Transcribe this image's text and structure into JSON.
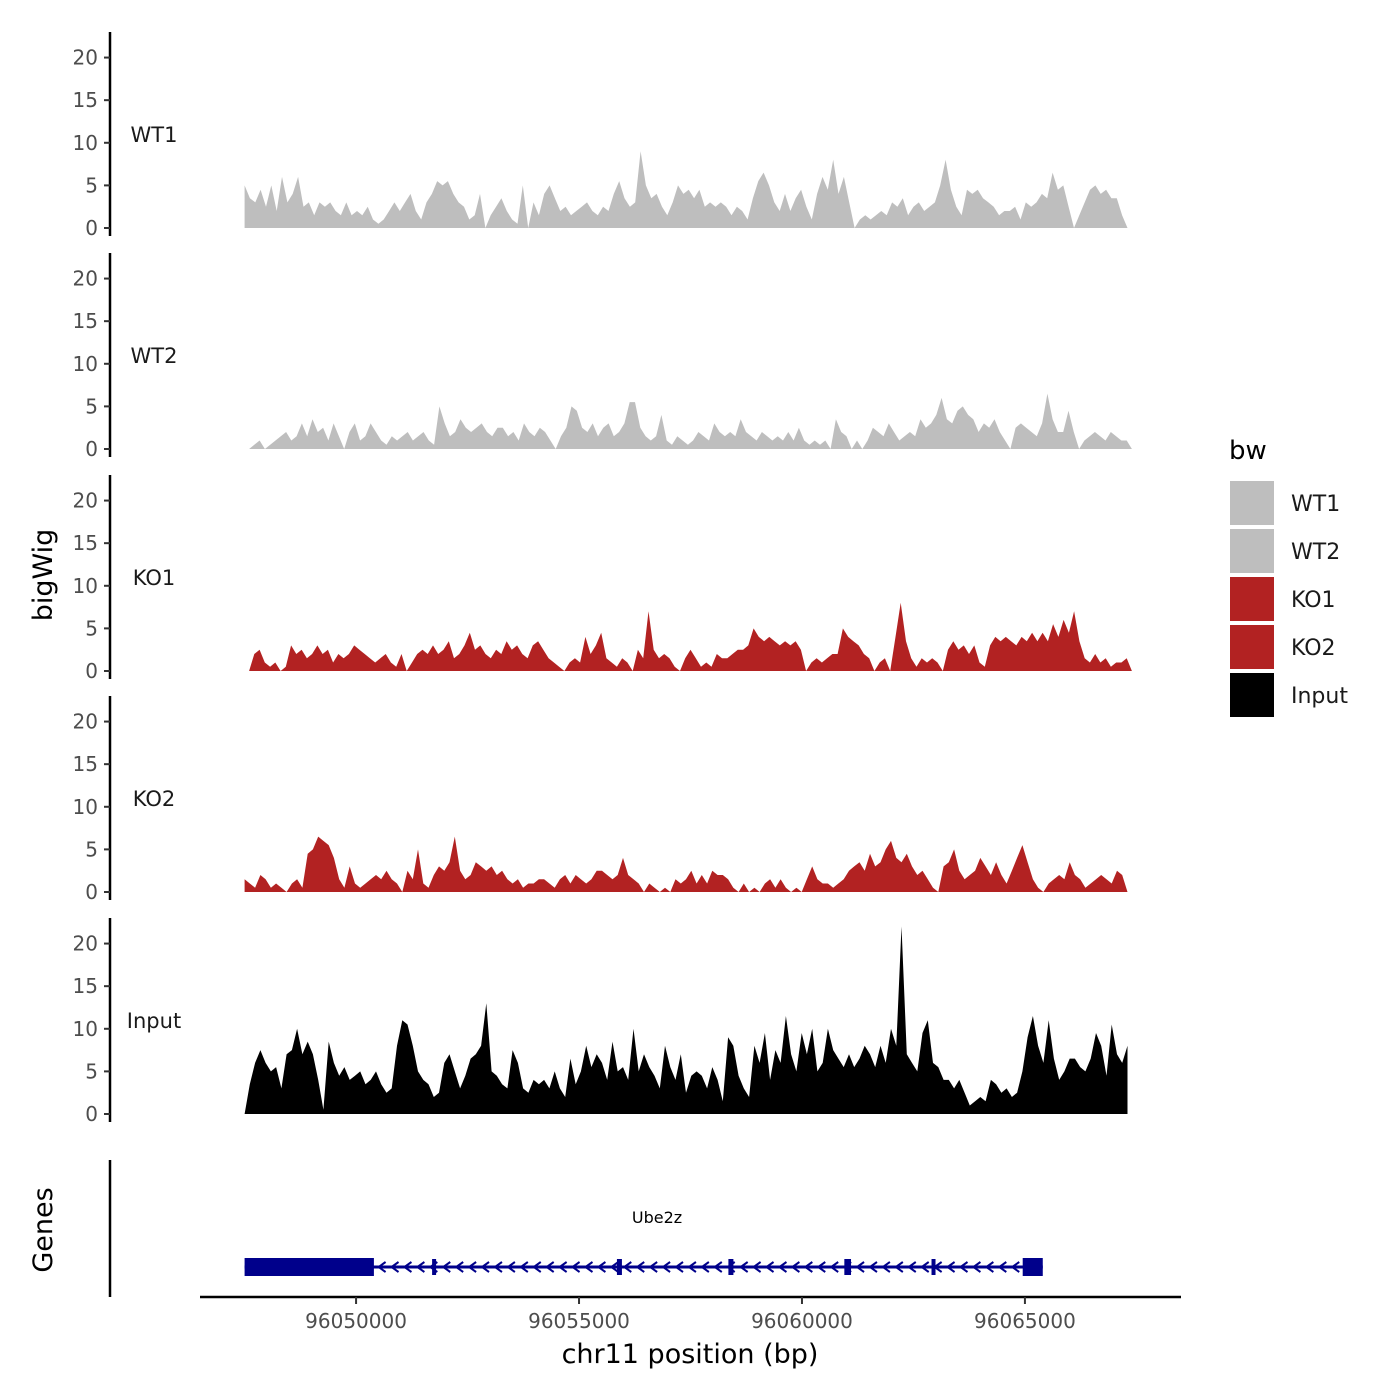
{
  "chart_data": {
    "type": "area",
    "title": "",
    "ylabel": "bigWig",
    "xlabel": "chr11 position (bp)",
    "xlim": [
      96046500,
      96068500
    ],
    "ylim": [
      0,
      23
    ],
    "yticks": [
      0,
      5,
      10,
      15,
      20
    ],
    "xticks": [
      96050000,
      96055000,
      96060000,
      96065000
    ],
    "legend": {
      "title": "bw",
      "position": "right"
    },
    "series": [
      {
        "name": "WT1",
        "color": "#BEBEBE",
        "x_start": 96047500,
        "x_end": 96067300,
        "values": [
          5.0,
          3.5,
          3.0,
          4.5,
          2.5,
          5.0,
          2.0,
          6.0,
          3.0,
          4.0,
          6.0,
          2.5,
          3.0,
          1.5,
          3.0,
          2.5,
          3.0,
          2.0,
          1.5,
          3.0,
          1.5,
          2.0,
          1.5,
          2.5,
          1.0,
          0.5,
          1.0,
          2.0,
          3.0,
          2.0,
          3.0,
          4.0,
          2.0,
          1.0,
          3.0,
          4.0,
          5.5,
          5.0,
          5.5,
          4.0,
          3.0,
          2.5,
          1.0,
          1.5,
          4.0,
          0.0,
          1.5,
          2.5,
          3.5,
          2.0,
          1.0,
          0.5,
          5.0,
          0.0,
          3.0,
          1.5,
          4.0,
          5.0,
          3.5,
          2.0,
          2.5,
          1.5,
          2.0,
          2.5,
          3.0,
          2.0,
          1.5,
          2.5,
          2.0,
          4.0,
          5.5,
          3.5,
          2.5,
          3.0,
          9.0,
          5.0,
          3.5,
          4.0,
          2.5,
          1.5,
          3.0,
          5.0,
          4.0,
          4.5,
          3.5,
          4.5,
          2.5,
          3.0,
          2.5,
          3.0,
          2.5,
          1.5,
          2.5,
          2.0,
          1.0,
          3.5,
          5.5,
          6.5,
          5.0,
          3.0,
          2.0,
          4.0,
          2.0,
          3.5,
          4.5,
          2.5,
          1.0,
          4.0,
          6.0,
          4.5,
          8.0,
          4.0,
          6.0,
          3.0,
          0.0,
          1.0,
          1.5,
          1.0,
          1.5,
          2.0,
          1.5,
          3.0,
          2.5,
          3.5,
          1.5,
          2.5,
          3.0,
          2.0,
          2.5,
          3.0,
          5.0,
          8.0,
          4.5,
          2.5,
          1.5,
          4.5,
          4.0,
          4.5,
          3.5,
          3.0,
          2.5,
          1.5,
          2.0,
          2.0,
          2.5,
          1.0,
          3.0,
          2.5,
          3.0,
          4.0,
          3.5,
          6.5,
          4.5,
          5.0,
          2.5,
          0.0,
          1.5,
          3.0,
          4.5,
          5.0,
          4.0,
          4.5,
          3.5,
          3.5,
          1.5,
          0.0
        ]
      },
      {
        "name": "WT2",
        "color": "#BEBEBE",
        "x_start": 96047600,
        "x_end": 96067400,
        "values": [
          0.0,
          0.5,
          1.0,
          0.0,
          0.5,
          1.0,
          1.5,
          2.0,
          1.0,
          1.5,
          3.0,
          1.5,
          3.5,
          2.0,
          2.5,
          1.0,
          3.0,
          1.5,
          0.0,
          2.0,
          3.0,
          1.0,
          1.5,
          3.0,
          2.0,
          1.0,
          0.5,
          1.5,
          1.0,
          1.5,
          2.0,
          1.0,
          1.5,
          2.0,
          1.0,
          0.5,
          5.0,
          3.0,
          1.5,
          2.0,
          3.5,
          2.5,
          2.0,
          2.5,
          3.0,
          2.0,
          1.5,
          2.5,
          2.5,
          1.5,
          2.0,
          1.0,
          3.0,
          2.0,
          1.5,
          2.5,
          2.0,
          1.0,
          0.0,
          1.5,
          2.5,
          5.0,
          4.5,
          2.5,
          2.0,
          3.0,
          1.5,
          2.5,
          3.0,
          1.5,
          2.0,
          3.0,
          5.5,
          5.5,
          2.5,
          1.5,
          1.0,
          1.5,
          4.0,
          1.0,
          0.5,
          1.5,
          1.0,
          0.5,
          1.0,
          2.0,
          1.5,
          1.0,
          3.0,
          2.0,
          1.5,
          2.0,
          1.5,
          3.5,
          2.0,
          1.5,
          1.0,
          2.0,
          1.5,
          1.0,
          1.5,
          1.0,
          2.0,
          1.0,
          2.5,
          1.0,
          0.5,
          1.0,
          0.5,
          1.0,
          0.0,
          3.5,
          2.0,
          1.5,
          0.0,
          1.0,
          0.0,
          1.0,
          2.5,
          2.0,
          1.5,
          3.0,
          2.0,
          1.0,
          1.5,
          2.0,
          1.5,
          3.5,
          2.5,
          3.0,
          4.0,
          6.0,
          3.5,
          3.0,
          4.5,
          5.0,
          4.0,
          3.5,
          2.0,
          3.0,
          2.5,
          3.5,
          2.0,
          1.0,
          0.0,
          2.5,
          3.0,
          2.5,
          2.0,
          1.5,
          3.0,
          6.5,
          3.5,
          2.0,
          2.0,
          4.5,
          2.0,
          0.0,
          1.0,
          1.5,
          2.0,
          1.5,
          1.0,
          2.0,
          1.5,
          1.0,
          1.0,
          0.0
        ]
      },
      {
        "name": "KO1",
        "color": "#B22222",
        "x_start": 96047600,
        "x_end": 96067400,
        "values": [
          0.0,
          2.0,
          2.5,
          1.0,
          0.5,
          1.0,
          0.0,
          0.5,
          3.0,
          2.0,
          2.5,
          1.5,
          2.0,
          3.0,
          2.0,
          2.5,
          1.0,
          2.0,
          1.5,
          2.0,
          3.0,
          2.5,
          2.0,
          1.5,
          1.0,
          1.5,
          2.0,
          1.0,
          0.5,
          2.0,
          0.0,
          1.0,
          2.0,
          2.5,
          2.0,
          3.0,
          2.0,
          2.5,
          3.5,
          1.5,
          2.0,
          3.0,
          4.5,
          2.5,
          3.0,
          2.0,
          1.5,
          2.5,
          2.0,
          3.5,
          2.5,
          3.0,
          2.0,
          1.5,
          3.0,
          3.5,
          2.5,
          1.5,
          1.0,
          0.5,
          0.0,
          1.0,
          1.5,
          1.0,
          4.0,
          2.0,
          3.0,
          4.5,
          1.5,
          1.0,
          0.5,
          1.5,
          1.0,
          0.0,
          2.5,
          1.5,
          7.0,
          2.5,
          1.5,
          2.0,
          1.5,
          0.5,
          0.0,
          1.5,
          2.5,
          1.5,
          0.5,
          1.0,
          0.5,
          2.0,
          1.5,
          1.5,
          2.0,
          2.5,
          2.5,
          3.0,
          5.0,
          4.0,
          3.5,
          4.0,
          3.5,
          3.0,
          3.5,
          3.0,
          3.5,
          2.5,
          0.0,
          1.0,
          1.5,
          1.0,
          1.5,
          2.0,
          2.0,
          5.0,
          4.0,
          3.5,
          3.0,
          2.0,
          1.5,
          0.0,
          1.0,
          1.5,
          0.0,
          4.0,
          8.0,
          3.5,
          1.5,
          0.5,
          1.5,
          1.0,
          1.5,
          1.0,
          0.0,
          2.5,
          3.5,
          2.5,
          3.0,
          2.0,
          3.0,
          1.0,
          0.5,
          3.0,
          4.0,
          3.5,
          4.0,
          3.5,
          3.0,
          4.0,
          3.5,
          4.5,
          3.5,
          4.5,
          3.5,
          5.5,
          4.0,
          6.0,
          4.5,
          7.0,
          3.5,
          1.5,
          1.0,
          2.0,
          1.0,
          1.5,
          0.5,
          1.0,
          1.0,
          1.5,
          0.0
        ]
      },
      {
        "name": "KO2",
        "color": "#B22222",
        "x_start": 96047500,
        "x_end": 96067300,
        "values": [
          1.5,
          1.0,
          0.5,
          2.0,
          1.5,
          0.5,
          1.0,
          0.5,
          0.0,
          1.0,
          1.5,
          0.5,
          4.5,
          5.0,
          6.5,
          6.0,
          5.5,
          4.0,
          1.5,
          0.5,
          3.0,
          1.0,
          0.5,
          1.0,
          1.5,
          2.0,
          1.5,
          2.5,
          1.5,
          1.0,
          0.0,
          2.5,
          1.5,
          5.0,
          1.0,
          0.5,
          2.0,
          3.0,
          2.5,
          3.5,
          6.5,
          2.5,
          1.5,
          2.0,
          3.5,
          3.0,
          2.5,
          3.0,
          2.0,
          2.5,
          1.5,
          1.0,
          1.5,
          0.5,
          1.0,
          1.0,
          1.5,
          1.5,
          1.0,
          0.5,
          1.5,
          2.0,
          1.0,
          2.0,
          1.5,
          1.0,
          1.5,
          2.5,
          2.5,
          2.0,
          1.5,
          2.0,
          4.0,
          2.0,
          1.5,
          1.0,
          0.0,
          1.0,
          0.5,
          0.0,
          0.5,
          0.0,
          1.5,
          1.0,
          1.5,
          2.5,
          1.0,
          2.0,
          1.0,
          2.5,
          2.0,
          2.0,
          1.5,
          0.5,
          0.0,
          1.0,
          0.0,
          0.5,
          0.0,
          1.0,
          1.5,
          0.5,
          1.5,
          0.5,
          0.0,
          0.5,
          0.0,
          1.5,
          3.0,
          1.5,
          1.0,
          1.0,
          0.5,
          1.0,
          1.5,
          2.5,
          3.0,
          3.5,
          2.5,
          4.5,
          3.0,
          3.5,
          5.0,
          6.0,
          4.0,
          3.5,
          4.5,
          3.0,
          2.0,
          2.5,
          1.5,
          0.5,
          0.0,
          3.0,
          3.5,
          5.0,
          2.5,
          1.5,
          2.0,
          2.5,
          4.0,
          3.0,
          2.0,
          3.5,
          2.0,
          1.0,
          2.5,
          4.0,
          5.5,
          3.5,
          1.5,
          0.5,
          0.0,
          1.0,
          1.5,
          2.0,
          1.5,
          3.5,
          2.0,
          1.5,
          0.5,
          1.0,
          1.5,
          2.0,
          1.5,
          1.0,
          2.5,
          2.0,
          0.0
        ]
      },
      {
        "name": "Input",
        "color": "#000000",
        "x_start": 96047500,
        "x_end": 96067300,
        "values": [
          0.0,
          3.5,
          6.0,
          7.5,
          6.0,
          5.0,
          5.5,
          3.0,
          7.0,
          7.5,
          10.0,
          7.0,
          8.5,
          7.0,
          4.0,
          0.5,
          8.5,
          6.0,
          4.5,
          5.5,
          4.0,
          4.5,
          5.0,
          3.5,
          4.0,
          5.0,
          3.5,
          2.5,
          3.0,
          8.0,
          11.0,
          10.5,
          8.0,
          5.0,
          4.0,
          3.5,
          2.0,
          2.5,
          6.0,
          7.0,
          5.0,
          3.0,
          4.5,
          6.5,
          7.0,
          8.0,
          13.0,
          5.0,
          4.5,
          3.5,
          3.0,
          7.5,
          6.0,
          3.0,
          2.5,
          4.0,
          3.5,
          4.0,
          3.0,
          5.0,
          3.0,
          2.0,
          6.5,
          3.5,
          5.0,
          8.0,
          5.5,
          7.0,
          6.0,
          4.0,
          8.5,
          5.0,
          5.5,
          4.0,
          10.0,
          5.0,
          7.0,
          5.5,
          4.5,
          3.0,
          8.0,
          5.5,
          4.0,
          7.0,
          2.5,
          4.5,
          5.0,
          4.5,
          3.0,
          5.5,
          4.0,
          1.5,
          9.0,
          8.0,
          4.5,
          3.0,
          2.0,
          8.0,
          6.0,
          9.5,
          4.0,
          7.5,
          6.0,
          11.5,
          7.0,
          5.0,
          9.5,
          7.0,
          10.0,
          5.0,
          6.0,
          10.0,
          7.5,
          6.5,
          5.5,
          7.0,
          5.5,
          6.5,
          8.0,
          7.0,
          5.5,
          8.0,
          6.0,
          10.0,
          8.0,
          22.0,
          7.0,
          6.0,
          5.0,
          9.5,
          11.0,
          6.0,
          5.5,
          4.0,
          4.0,
          3.0,
          4.0,
          2.5,
          1.0,
          1.5,
          2.0,
          1.5,
          4.0,
          3.5,
          2.5,
          3.0,
          2.0,
          2.5,
          5.0,
          9.0,
          11.5,
          8.0,
          6.0,
          11.0,
          6.5,
          4.0,
          5.0,
          6.5,
          6.5,
          5.5,
          5.0,
          6.5,
          9.5,
          8.0,
          4.5,
          10.5,
          7.0,
          6.0,
          8.0
        ]
      }
    ],
    "genes_track": {
      "ylabel": "Genes",
      "gene_name": "Ube2z",
      "strand": "-",
      "color": "#00008B",
      "start": 96047500,
      "end": 96065400,
      "exons": [
        [
          96047500,
          96050400
        ],
        [
          96055850,
          96055950
        ],
        [
          96058350,
          96058450
        ],
        [
          96060950,
          96061100
        ],
        [
          96064950,
          96065400
        ]
      ],
      "minor_marks": [
        96051750,
        96062950
      ]
    }
  }
}
